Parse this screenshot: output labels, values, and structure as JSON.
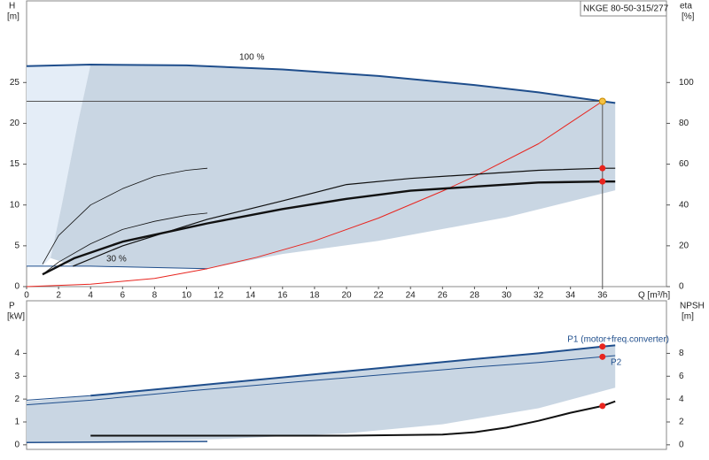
{
  "chart_data": [
    {
      "type": "line",
      "title": "NKGE 80-50-315/277",
      "y_label": "H",
      "y_unit": "[m]",
      "y2_label": "eta",
      "y2_unit": "[%]",
      "x_label": "Q [m³/h]",
      "xlim": [
        0,
        40
      ],
      "xticks": [
        0,
        2,
        4,
        6,
        8,
        10,
        12,
        14,
        16,
        18,
        20,
        22,
        24,
        26,
        28,
        30,
        32,
        34,
        36
      ],
      "ylim": [
        0,
        35
      ],
      "yticks": [
        0,
        5,
        10,
        15,
        20,
        25
      ],
      "y2lim": [
        0,
        140
      ],
      "y2ticks": [
        0,
        20,
        40,
        60,
        80,
        100
      ],
      "series": [
        {
          "style": "polygon",
          "color": "#e4edf7",
          "x": [
            0,
            4,
            3.2,
            2.2,
            1.5,
            1,
            0
          ],
          "values": [
            27,
            27.2,
            20,
            10,
            3.5,
            2.5,
            2.5
          ]
        },
        {
          "style": "polygon",
          "color": "#c9d6e3",
          "x": [
            4,
            10,
            16,
            22,
            28,
            32,
            36,
            36.8,
            36.8,
            30,
            22,
            16,
            11.3,
            3,
            1.5,
            2.2,
            3.2
          ],
          "values": [
            27.2,
            27.1,
            26.6,
            25.8,
            24.7,
            23.8,
            22.7,
            22.5,
            11.8,
            8.5,
            5.6,
            4,
            2.2,
            2.5,
            3.5,
            10,
            20
          ]
        },
        {
          "name": "100 %",
          "color": "#1f4e8c",
          "width": 2,
          "x": [
            0,
            4,
            10,
            16,
            22,
            28,
            32,
            36,
            36.8
          ],
          "values": [
            27,
            27.2,
            27.1,
            26.6,
            25.8,
            24.7,
            23.8,
            22.7,
            22.5
          ]
        },
        {
          "name": "30 %",
          "color": "#1f4e8c",
          "width": 1,
          "x": [
            0,
            4,
            11.3
          ],
          "values": [
            2.5,
            2.5,
            2.2
          ]
        },
        {
          "color": "#e8251f",
          "width": 1,
          "x": [
            0,
            4,
            8,
            11.3,
            14.4,
            18,
            22,
            26,
            28,
            32,
            36
          ],
          "values": [
            0,
            0.3,
            1,
            2.2,
            3.6,
            5.6,
            8.4,
            11.7,
            13.5,
            17.5,
            22.7
          ]
        },
        {
          "axis": "y2",
          "color": "#111",
          "width": 0.8,
          "x": [
            1,
            2,
            4,
            6,
            8,
            10,
            11.3
          ],
          "values": [
            11,
            25,
            40,
            48,
            54,
            57,
            58
          ]
        },
        {
          "axis": "y2",
          "color": "#111",
          "width": 0.8,
          "x": [
            1,
            2,
            4,
            6,
            8,
            10,
            11.3
          ],
          "values": [
            6,
            12,
            21,
            28,
            32,
            35,
            36
          ]
        },
        {
          "axis": "y2",
          "color": "#111",
          "width": 1.2,
          "x": [
            2.9,
            6,
            11.3,
            16,
            20,
            24,
            28,
            32,
            36,
            36.8
          ],
          "values": [
            10,
            20,
            33,
            42,
            50,
            53,
            55,
            57,
            58,
            58
          ]
        },
        {
          "axis": "y2",
          "color": "#111",
          "width": 2.4,
          "x": [
            1,
            3,
            6,
            11.3,
            16,
            20,
            24,
            28,
            32,
            36,
            36.8
          ],
          "values": [
            6,
            14,
            22,
            31,
            38,
            43,
            47,
            49,
            51,
            51.5,
            51.5
          ]
        }
      ],
      "points": [
        {
          "x": 36,
          "y": 22.7,
          "color": "#f5c242"
        },
        {
          "x": 36,
          "y": 58,
          "axis": "y2",
          "color": "#e8251f"
        },
        {
          "x": 36,
          "y": 51.5,
          "axis": "y2",
          "color": "#e8251f"
        }
      ]
    },
    {
      "type": "line",
      "y_label": "P",
      "y_unit": "[kW]",
      "y2_label": "NPSH",
      "y2_unit": "[m]",
      "xlim": [
        0,
        40
      ],
      "ylim": [
        -0.2,
        6.3
      ],
      "yticks": [
        0,
        1,
        2,
        3,
        4
      ],
      "y2lim": [
        -0.4,
        12.6
      ],
      "y2ticks": [
        0,
        2,
        4,
        6,
        8
      ],
      "series": [
        {
          "style": "polygon",
          "color": "#c9d6e3",
          "x": [
            0,
            4,
            10,
            16,
            22,
            28,
            32,
            36,
            36.8,
            36.8,
            32,
            26,
            20,
            12,
            4,
            0
          ],
          "values": [
            1.9,
            2.15,
            2.55,
            2.95,
            3.35,
            3.75,
            4.0,
            4.3,
            4.35,
            2.5,
            1.6,
            0.9,
            0.5,
            0.25,
            0.1,
            0.1
          ]
        },
        {
          "name": "P1 (motor+freq.converter)",
          "color": "#1f4e8c",
          "width": 2,
          "x": [
            4,
            10,
            16,
            22,
            28,
            32,
            36,
            36.8
          ],
          "values": [
            2.15,
            2.55,
            2.95,
            3.35,
            3.75,
            4.0,
            4.3,
            4.35
          ]
        },
        {
          "color": "#1f4e8c",
          "width": 1,
          "x": [
            0,
            4
          ],
          "values": [
            1.95,
            2.15
          ]
        },
        {
          "name": "P2",
          "color": "#1f4e8c",
          "width": 1,
          "x": [
            0,
            4,
            10,
            16,
            22,
            28,
            32,
            36,
            36.8
          ],
          "values": [
            1.75,
            1.95,
            2.35,
            2.7,
            3.05,
            3.4,
            3.6,
            3.85,
            3.9
          ]
        },
        {
          "axis": "y2",
          "color": "#111",
          "width": 2,
          "x": [
            4,
            10,
            20,
            26,
            28,
            30,
            32,
            34,
            36,
            36.8
          ],
          "values": [
            0.8,
            0.8,
            0.8,
            0.9,
            1.1,
            1.5,
            2.1,
            2.8,
            3.4,
            3.8
          ]
        },
        {
          "color": "#1f4e8c",
          "width": 1.5,
          "x": [
            0,
            11.3
          ],
          "values": [
            0.1,
            0.15
          ]
        }
      ],
      "points": [
        {
          "x": 36,
          "y": 4.3,
          "color": "#e8251f"
        },
        {
          "x": 36,
          "y": 3.85,
          "color": "#e8251f"
        },
        {
          "x": 36,
          "y": 3.4,
          "axis": "y2",
          "color": "#e8251f"
        }
      ]
    }
  ]
}
